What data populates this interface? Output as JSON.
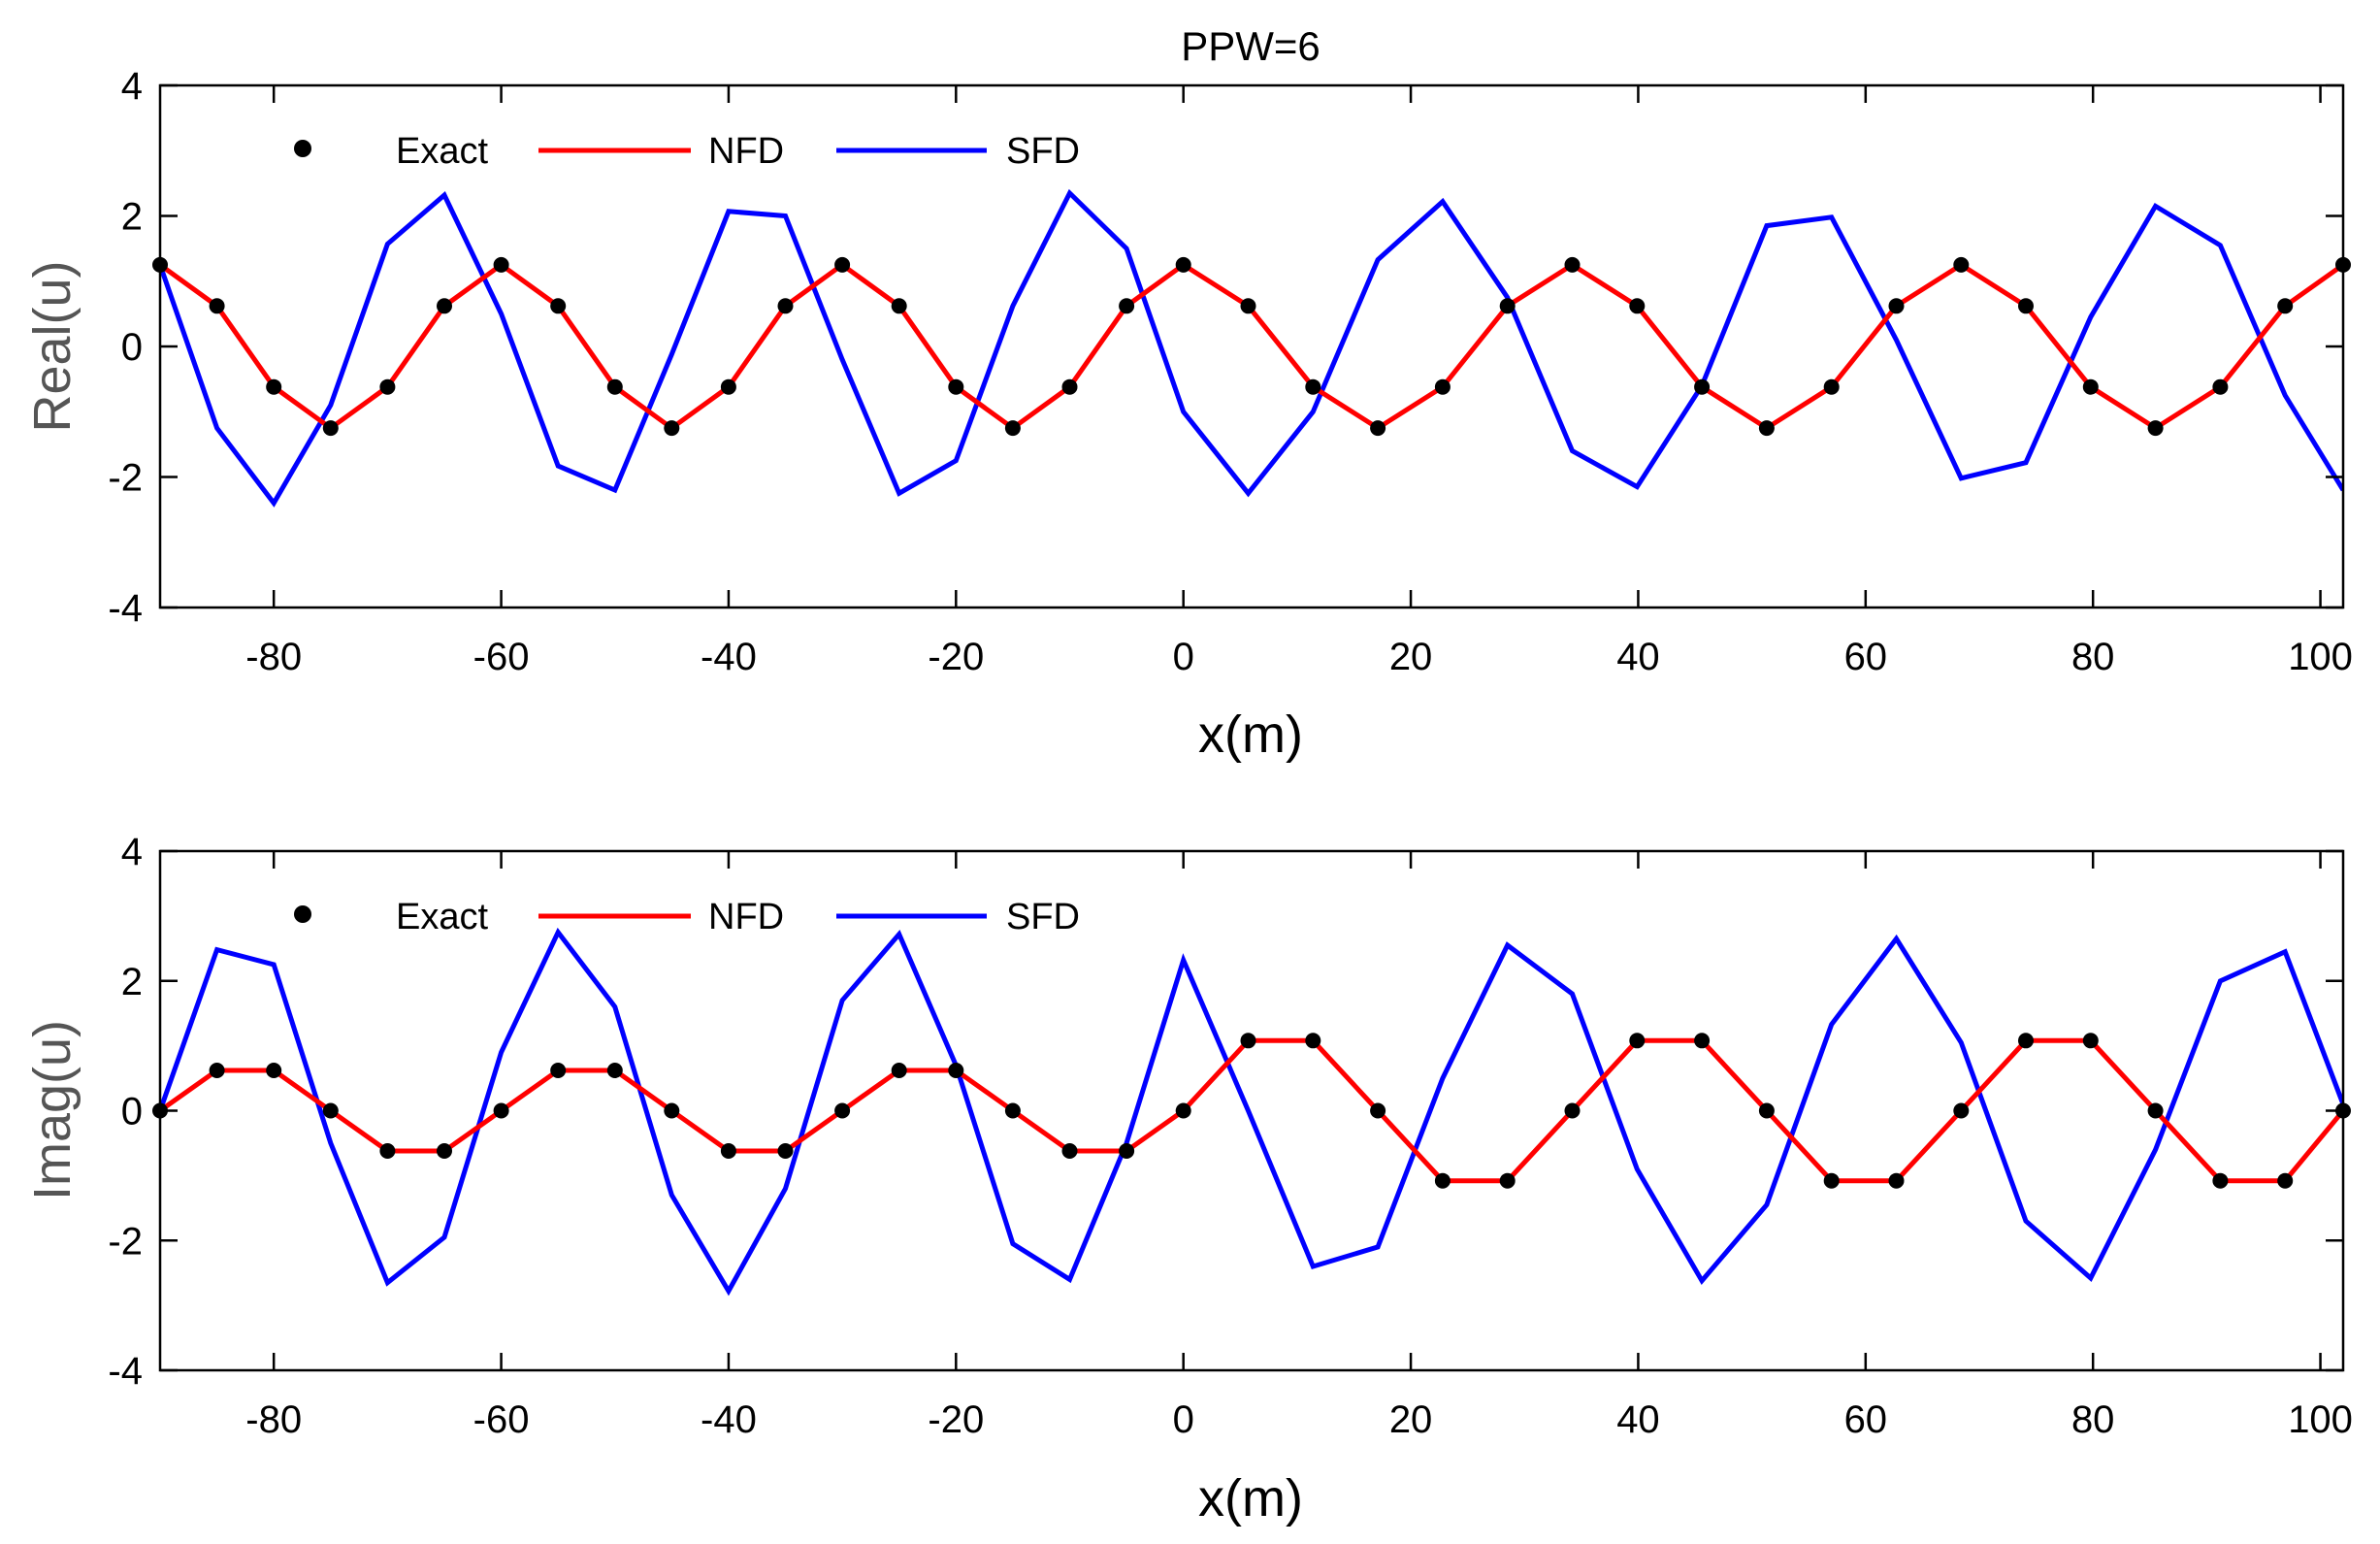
{
  "figure": {
    "title": "PPW=6"
  },
  "chart_data": [
    {
      "type": "line",
      "panel": "top",
      "xlabel": "x(m)",
      "ylabel": "Real(u)",
      "xlim": [
        -90,
        102
      ],
      "ylim": [
        -4,
        4
      ],
      "xticks": [
        "-80",
        "-60",
        "-40",
        "-20",
        "0",
        "20",
        "40",
        "60",
        "80",
        "100"
      ],
      "yticks": [
        "-4",
        "-2",
        "0",
        "2",
        "4"
      ],
      "legend_location": "top-left",
      "grid": false,
      "legend": {
        "exact": "Exact",
        "nfd": "NFD",
        "sfd": "SFD"
      },
      "colors": {
        "exact": "#000000",
        "nfd": "#ff0000",
        "sfd": "#0000ff"
      },
      "series": [
        {
          "name": "Exact",
          "style": "markers",
          "x": [
            -90,
            -85,
            -80,
            -75,
            -70,
            -65,
            -60,
            -55,
            -50,
            -45,
            -40,
            -35,
            -30,
            -25,
            -20,
            -15,
            -10,
            -5,
            0,
            5.7,
            11.4,
            17.1,
            22.8,
            28.5,
            34.2,
            39.9,
            45.6,
            51.3,
            57,
            62.7,
            68.4,
            74.1,
            79.8,
            85.5,
            91.2,
            96.9,
            102
          ],
          "values": [
            1.25,
            0.62,
            -0.62,
            -1.25,
            -0.62,
            0.62,
            1.25,
            0.62,
            -0.62,
            -1.25,
            -0.62,
            0.62,
            1.25,
            0.62,
            -0.62,
            -1.25,
            -0.62,
            0.62,
            1.25,
            0.62,
            -0.62,
            -1.25,
            -0.62,
            0.62,
            1.25,
            0.62,
            -0.62,
            -1.25,
            -0.62,
            0.62,
            1.25,
            0.62,
            -0.62,
            -1.25,
            -0.62,
            0.62,
            1.25
          ]
        },
        {
          "name": "NFD",
          "style": "line",
          "x": [
            -90,
            -85,
            -80,
            -75,
            -70,
            -65,
            -60,
            -55,
            -50,
            -45,
            -40,
            -35,
            -30,
            -25,
            -20,
            -15,
            -10,
            -5,
            0,
            5.7,
            11.4,
            17.1,
            22.8,
            28.5,
            34.2,
            39.9,
            45.6,
            51.3,
            57,
            62.7,
            68.4,
            74.1,
            79.8,
            85.5,
            91.2,
            96.9,
            102
          ],
          "values": [
            1.25,
            0.62,
            -0.62,
            -1.25,
            -0.62,
            0.62,
            1.25,
            0.62,
            -0.62,
            -1.25,
            -0.62,
            0.62,
            1.25,
            0.62,
            -0.62,
            -1.25,
            -0.62,
            0.62,
            1.25,
            0.62,
            -0.62,
            -1.25,
            -0.62,
            0.62,
            1.25,
            0.62,
            -0.62,
            -1.25,
            -0.62,
            0.62,
            1.25,
            0.62,
            -0.62,
            -1.25,
            -0.62,
            0.62,
            1.25
          ]
        },
        {
          "name": "SFD",
          "style": "line",
          "x": [
            -90,
            -85,
            -80,
            -75,
            -70,
            -65,
            -60,
            -55,
            -50,
            -45,
            -40,
            -35,
            -30,
            -25,
            -20,
            -15,
            -10,
            -5,
            0,
            5.7,
            11.4,
            17.1,
            22.8,
            28.5,
            34.2,
            39.9,
            45.6,
            51.3,
            57,
            62.7,
            68.4,
            74.1,
            79.8,
            85.5,
            91.2,
            96.9,
            102
          ],
          "values": [
            1.25,
            -1.25,
            -2.4,
            -0.9,
            1.57,
            2.32,
            0.5,
            -1.83,
            -2.2,
            -0.12,
            2.07,
            2.0,
            -0.2,
            -2.25,
            -1.75,
            0.62,
            2.35,
            1.5,
            -1.0,
            -2.25,
            -1.0,
            1.33,
            2.22,
            0.75,
            -1.6,
            -2.15,
            -0.6,
            1.85,
            1.98,
            0.1,
            -2.02,
            -1.78,
            0.45,
            2.15,
            1.55,
            -0.75,
            -2.2
          ]
        }
      ]
    },
    {
      "type": "line",
      "panel": "bottom",
      "xlabel": "x(m)",
      "ylabel": "Imag(u)",
      "xlim": [
        -90,
        102
      ],
      "ylim": [
        -4,
        4
      ],
      "xticks": [
        "-80",
        "-60",
        "-40",
        "-20",
        "0",
        "20",
        "40",
        "60",
        "80",
        "100"
      ],
      "yticks": [
        "-4",
        "-2",
        "0",
        "2",
        "4"
      ],
      "legend_location": "top-left",
      "grid": false,
      "legend": {
        "exact": "Exact",
        "nfd": "NFD",
        "sfd": "SFD"
      },
      "colors": {
        "exact": "#000000",
        "nfd": "#ff0000",
        "sfd": "#0000ff"
      },
      "series": [
        {
          "name": "Exact",
          "style": "markers",
          "x": [
            -90,
            -85,
            -80,
            -75,
            -70,
            -65,
            -60,
            -55,
            -50,
            -45,
            -40,
            -35,
            -30,
            -25,
            -20,
            -15,
            -10,
            -5,
            0,
            5.7,
            11.4,
            17.1,
            22.8,
            28.5,
            34.2,
            39.9,
            45.6,
            51.3,
            57,
            62.7,
            68.4,
            74.1,
            79.8,
            85.5,
            91.2,
            96.9,
            102
          ],
          "values": [
            0,
            0.62,
            0.62,
            0,
            -0.62,
            -0.62,
            0,
            0.62,
            0.62,
            0,
            -0.62,
            -0.62,
            0,
            0.62,
            0.62,
            0,
            -0.62,
            -0.62,
            0,
            1.08,
            1.08,
            0,
            -1.08,
            -1.08,
            0,
            1.08,
            1.08,
            0,
            -1.08,
            -1.08,
            0,
            1.08,
            1.08,
            0,
            -1.08,
            -1.08,
            0
          ]
        },
        {
          "name": "NFD",
          "style": "line",
          "x": [
            -90,
            -85,
            -80,
            -75,
            -70,
            -65,
            -60,
            -55,
            -50,
            -45,
            -40,
            -35,
            -30,
            -25,
            -20,
            -15,
            -10,
            -5,
            0,
            5.7,
            11.4,
            17.1,
            22.8,
            28.5,
            34.2,
            39.9,
            45.6,
            51.3,
            57,
            62.7,
            68.4,
            74.1,
            79.8,
            85.5,
            91.2,
            96.9,
            102
          ],
          "values": [
            0,
            0.62,
            0.62,
            0,
            -0.62,
            -0.62,
            0,
            0.62,
            0.62,
            0,
            -0.62,
            -0.62,
            0,
            0.62,
            0.62,
            0,
            -0.62,
            -0.62,
            0,
            1.08,
            1.08,
            0,
            -1.08,
            -1.08,
            0,
            1.08,
            1.08,
            0,
            -1.08,
            -1.08,
            0,
            1.08,
            1.08,
            0,
            -1.08,
            -1.08,
            0
          ]
        },
        {
          "name": "SFD",
          "style": "line",
          "x": [
            -90,
            -85,
            -80,
            -75,
            -70,
            -65,
            -60,
            -55,
            -50,
            -45,
            -40,
            -35,
            -30,
            -25,
            -20,
            -15,
            -10,
            -5,
            0,
            5.7,
            11.4,
            17.1,
            22.8,
            28.5,
            34.2,
            39.9,
            45.6,
            51.3,
            57,
            62.7,
            68.4,
            74.1,
            79.8,
            85.5,
            91.2,
            96.9,
            102
          ],
          "values": [
            0,
            2.48,
            2.25,
            -0.5,
            -2.65,
            -1.95,
            0.9,
            2.75,
            1.6,
            -1.3,
            -2.78,
            -1.2,
            1.7,
            2.72,
            0.7,
            -2.05,
            -2.6,
            -0.5,
            2.32,
            0,
            -2.4,
            -2.1,
            0.5,
            2.55,
            1.8,
            -0.9,
            -2.62,
            -1.45,
            1.33,
            2.65,
            1.05,
            -1.7,
            -2.58,
            -0.6,
            2.0,
            2.45,
            0.1
          ]
        }
      ]
    }
  ]
}
